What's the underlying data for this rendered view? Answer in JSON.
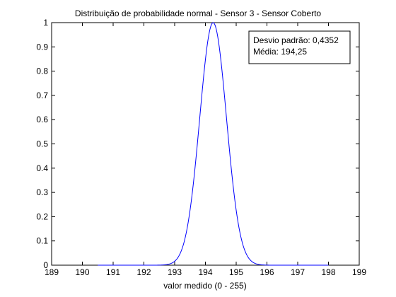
{
  "chart_data": {
    "type": "line",
    "title": "Distribuição de probabilidade normal - Sensor 3 - Sensor Coberto",
    "xlabel": "valor medido (0 - 255)",
    "ylabel": "",
    "xlim": [
      189,
      199
    ],
    "ylim": [
      0,
      1
    ],
    "x_ticks": [
      "189",
      "190",
      "191",
      "192",
      "193",
      "194",
      "195",
      "196",
      "197",
      "198",
      "199"
    ],
    "y_ticks": [
      "0",
      "0.1",
      "0.2",
      "0.3",
      "0.4",
      "0.5",
      "0.6",
      "0.7",
      "0.8",
      "0.9",
      "1"
    ],
    "grid": false,
    "legend_position": "top-right",
    "annotation_lines": [
      "Desvio padrão: 0,4352",
      "Média: 194,25"
    ],
    "series": [
      {
        "color": "#0000ff",
        "mean": 194.25,
        "std": 0.4352,
        "x_range": [
          190.5,
          198
        ]
      }
    ]
  }
}
